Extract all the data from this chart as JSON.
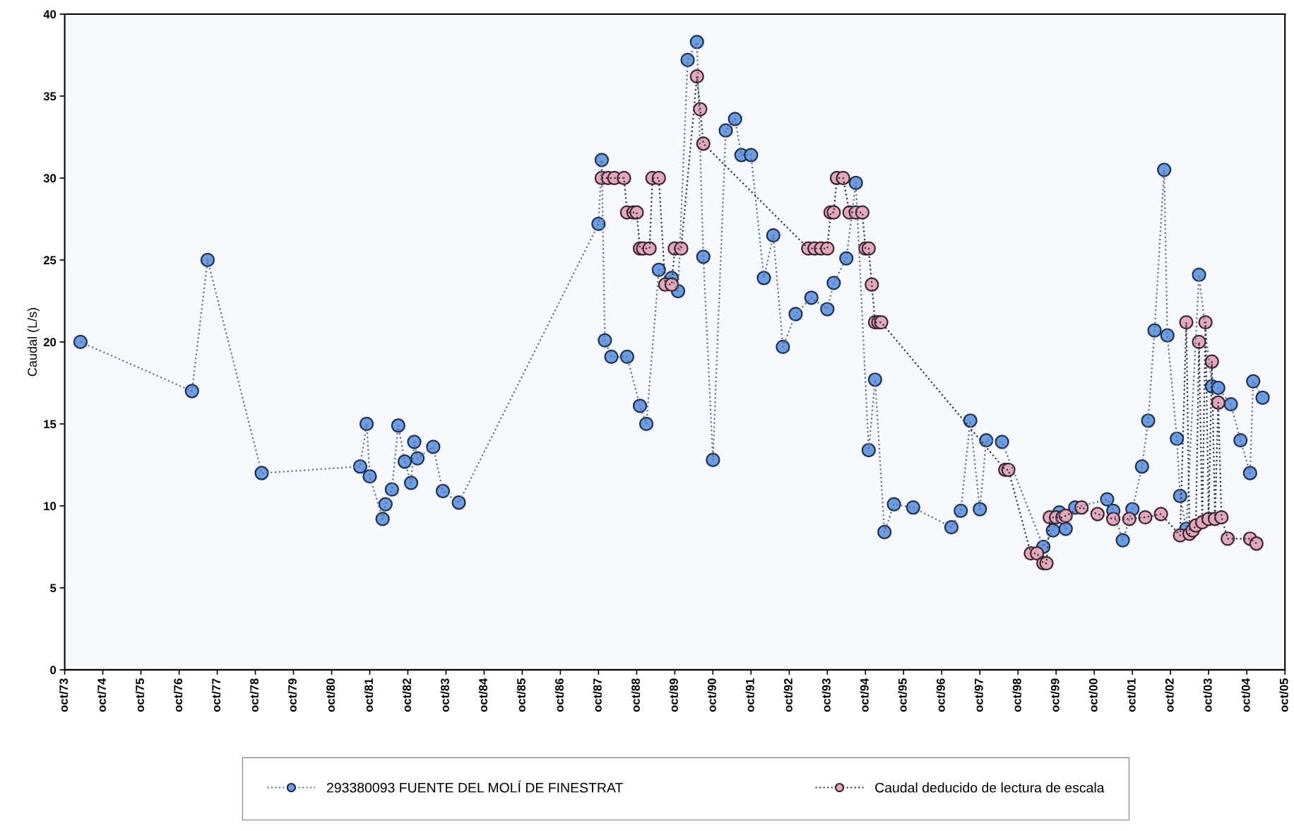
{
  "chart_data": {
    "type": "line",
    "ylabel": "Caudal (L/s)",
    "ylim": [
      0,
      40
    ],
    "yticks": [
      0,
      5,
      10,
      15,
      20,
      25,
      30,
      35,
      40
    ],
    "xlim": [
      "1973-10",
      "2005-10"
    ],
    "xticks": [
      {
        "value": "1973-10",
        "label": "oct/73"
      },
      {
        "value": "1974-10",
        "label": "oct/74"
      },
      {
        "value": "1975-10",
        "label": "oct/75"
      },
      {
        "value": "1976-10",
        "label": "oct/76"
      },
      {
        "value": "1977-10",
        "label": "oct/77"
      },
      {
        "value": "1978-10",
        "label": "oct/78"
      },
      {
        "value": "1979-10",
        "label": "oct/79"
      },
      {
        "value": "1980-10",
        "label": "oct/80"
      },
      {
        "value": "1981-10",
        "label": "oct/81"
      },
      {
        "value": "1982-10",
        "label": "oct/82"
      },
      {
        "value": "1983-10",
        "label": "oct/83"
      },
      {
        "value": "1984-10",
        "label": "oct/84"
      },
      {
        "value": "1985-10",
        "label": "oct/85"
      },
      {
        "value": "1986-10",
        "label": "oct/86"
      },
      {
        "value": "1987-10",
        "label": "oct/87"
      },
      {
        "value": "1988-10",
        "label": "oct/88"
      },
      {
        "value": "1989-10",
        "label": "oct/89"
      },
      {
        "value": "1990-10",
        "label": "oct/90"
      },
      {
        "value": "1991-10",
        "label": "oct/91"
      },
      {
        "value": "1992-10",
        "label": "oct/92"
      },
      {
        "value": "1993-10",
        "label": "oct/93"
      },
      {
        "value": "1994-10",
        "label": "oct/94"
      },
      {
        "value": "1995-10",
        "label": "oct/95"
      },
      {
        "value": "1996-10",
        "label": "oct/96"
      },
      {
        "value": "1997-10",
        "label": "oct/97"
      },
      {
        "value": "1998-10",
        "label": "oct/98"
      },
      {
        "value": "1999-10",
        "label": "oct/99"
      },
      {
        "value": "2000-10",
        "label": "oct/00"
      },
      {
        "value": "2001-10",
        "label": "oct/01"
      },
      {
        "value": "2002-10",
        "label": "oct/02"
      },
      {
        "value": "2003-10",
        "label": "oct/03"
      },
      {
        "value": "2004-10",
        "label": "oct/04"
      },
      {
        "value": "2005-10",
        "label": "oct/05"
      }
    ],
    "marker": "circle",
    "line_style": "dotted",
    "grid": false,
    "legend": "bottom",
    "series": [
      {
        "name": "293380093 FUENTE DEL MOLÍ DE FINESTRAT",
        "color": "#6b9ee0",
        "x": [
          "1974-03",
          "1977-02",
          "1977-07",
          "1978-12",
          "1981-07",
          "1981-09",
          "1981-10",
          "1982-02",
          "1982-03",
          "1982-05",
          "1982-07",
          "1982-09",
          "1982-11",
          "1982-12",
          "1983-01",
          "1983-06",
          "1983-09",
          "1984-02",
          "1987-10",
          "1987-11",
          "1987-12",
          "1988-02",
          "1988-07",
          "1988-11",
          "1989-01",
          "1989-05",
          "1989-09",
          "1989-11",
          "1990-02",
          "1990-05",
          "1990-07",
          "1990-10",
          "1991-02",
          "1991-05",
          "1991-07",
          "1991-10",
          "1992-02",
          "1992-05",
          "1992-08",
          "1992-12",
          "1993-05",
          "1993-10",
          "1993-12",
          "1994-04",
          "1994-07",
          "1994-11",
          "1995-01",
          "1995-04",
          "1995-07",
          "1996-01",
          "1997-01",
          "1997-04",
          "1997-07",
          "1997-10",
          "1997-12",
          "1998-05",
          "1999-06",
          "1999-09",
          "1999-11",
          "2000-01",
          "2000-04",
          "2001-02",
          "2001-04",
          "2001-07",
          "2001-10",
          "2002-01",
          "2002-03",
          "2002-05",
          "2002-08",
          "2002-09",
          "2002-12",
          "2003-01",
          "2003-03",
          "2003-07",
          "2003-11",
          "2004-01",
          "2004-05",
          "2004-08",
          "2004-11",
          "2004-12",
          "2005-03"
        ],
        "values": [
          20.0,
          17.0,
          25.0,
          12.0,
          12.4,
          15.0,
          11.8,
          9.2,
          10.1,
          11.0,
          14.9,
          12.7,
          11.4,
          13.9,
          12.9,
          13.6,
          10.9,
          10.2,
          27.2,
          31.1,
          20.1,
          19.1,
          19.1,
          16.1,
          15.0,
          24.4,
          23.9,
          23.1,
          37.2,
          38.3,
          25.2,
          12.8,
          32.9,
          33.6,
          31.4,
          31.4,
          23.9,
          26.5,
          19.7,
          21.7,
          22.7,
          22.0,
          23.6,
          25.1,
          29.7,
          13.4,
          17.7,
          8.4,
          10.1,
          9.9,
          8.7,
          9.7,
          15.2,
          9.8,
          14.0,
          13.9,
          7.5,
          8.5,
          9.6,
          8.6,
          9.9,
          10.4,
          9.7,
          7.9,
          9.8,
          12.4,
          15.2,
          20.7,
          30.5,
          20.4,
          14.1,
          10.6,
          8.6,
          24.1,
          17.3,
          17.2,
          16.2,
          14.0,
          12.0,
          17.6,
          16.6
        ]
      },
      {
        "name": "Caudal deducido de lectura de escala",
        "color": "#e3a9bb",
        "x": [
          "1987-11",
          "1988-01",
          "1988-03",
          "1988-06",
          "1988-07",
          "1988-09",
          "1988-10",
          "1988-11",
          "1988-12",
          "1989-02",
          "1989-03",
          "1989-05",
          "1989-07",
          "1989-09",
          "1989-10",
          "1989-12",
          "1990-05",
          "1990-06",
          "1990-07",
          "1993-04",
          "1993-06",
          "1993-08",
          "1993-10",
          "1993-11",
          "1993-12",
          "1994-01",
          "1994-03",
          "1994-05",
          "1994-07",
          "1994-09",
          "1994-10",
          "1994-11",
          "1994-12",
          "1995-01",
          "1995-02",
          "1995-03",
          "1998-06",
          "1998-07",
          "1999-02",
          "1999-04",
          "1999-06",
          "1999-07",
          "1999-08",
          "1999-10",
          "1999-12",
          "2000-01",
          "2000-06",
          "2000-11",
          "2001-04",
          "2001-09",
          "2002-02",
          "2002-07",
          "2003-01",
          "2003-03",
          "2003-04",
          "2003-05",
          "2003-06",
          "2003-07",
          "2003-08",
          "2003-09",
          "2003-10",
          "2003-11",
          "2003-12",
          "2004-01",
          "2004-02",
          "2004-04",
          "2004-11",
          "2005-01"
        ],
        "values": [
          30.0,
          30.0,
          30.0,
          30.0,
          27.9,
          27.9,
          27.9,
          25.7,
          25.7,
          25.7,
          30.0,
          30.0,
          23.5,
          23.5,
          25.7,
          25.7,
          36.2,
          34.2,
          32.1,
          25.7,
          25.7,
          25.7,
          25.7,
          27.9,
          27.9,
          30.0,
          30.0,
          27.9,
          27.9,
          27.9,
          25.7,
          25.7,
          23.5,
          21.2,
          21.2,
          21.2,
          12.2,
          12.2,
          7.1,
          7.1,
          6.5,
          6.5,
          9.3,
          9.3,
          9.3,
          9.4,
          9.9,
          9.5,
          9.2,
          9.2,
          9.3,
          9.5,
          8.2,
          21.2,
          8.3,
          8.5,
          8.8,
          20.0,
          9.0,
          21.2,
          9.2,
          18.8,
          9.2,
          16.3,
          9.3,
          8.0,
          8.0,
          7.7
        ]
      }
    ]
  }
}
